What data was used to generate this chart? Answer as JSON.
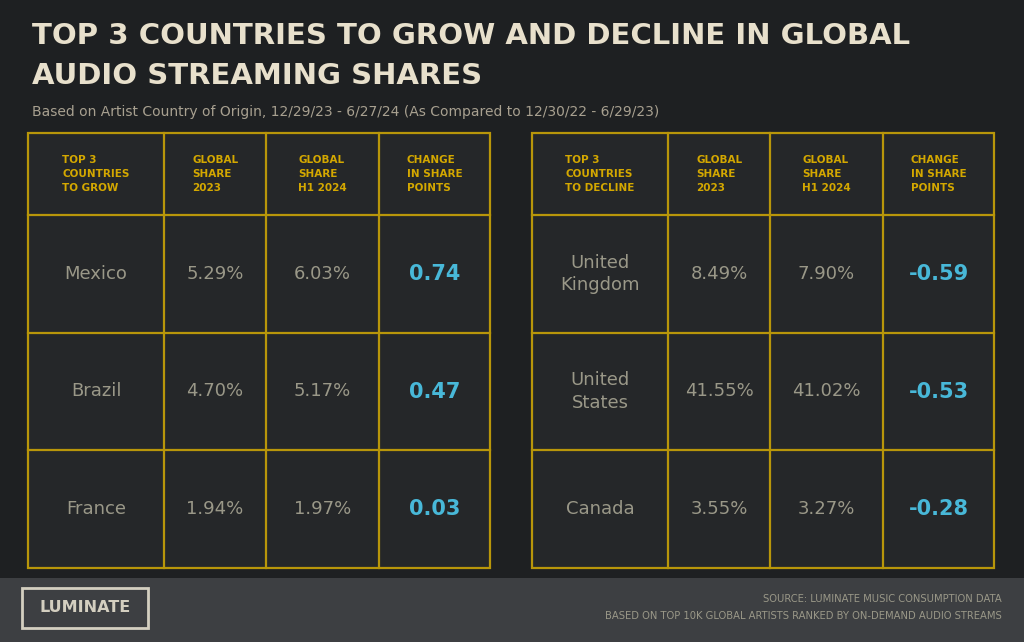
{
  "bg_color": "#1e2022",
  "table_bg_color": "#252729",
  "footer_color": "#3d3f42",
  "title_line1": "TOP 3 COUNTRIES TO GROW AND DECLINE IN GLOBAL",
  "title_line2": "AUDIO STREAMING SHARES",
  "subtitle": "Based on Artist Country of Origin, 12/29/23 - 6/27/24 (As Compared to 12/30/22 - 6/29/23)",
  "title_color": "#e8e0cc",
  "subtitle_color": "#a8a090",
  "table_border_color": "#b8960a",
  "header_text_color": "#d4a800",
  "body_text_color": "#9a9888",
  "change_color": "#48b8d8",
  "grow_table": {
    "headers": [
      "TOP 3\nCOUNTRIES\nTO GROW",
      "GLOBAL\nSHARE\n2023",
      "GLOBAL\nSHARE\nH1 2024",
      "CHANGE\nIN SHARE\nPOINTS"
    ],
    "rows": [
      [
        "Mexico",
        "5.29%",
        "6.03%",
        "0.74"
      ],
      [
        "Brazil",
        "4.70%",
        "5.17%",
        "0.47"
      ],
      [
        "France",
        "1.94%",
        "1.97%",
        "0.03"
      ]
    ]
  },
  "decline_table": {
    "headers": [
      "TOP 3\nCOUNTRIES\nTO DECLINE",
      "GLOBAL\nSHARE\n2023",
      "GLOBAL\nSHARE\nH1 2024",
      "CHANGE\nIN SHARE\nPOINTS"
    ],
    "rows": [
      [
        "United\nKingdom",
        "8.49%",
        "7.90%",
        "-0.59"
      ],
      [
        "United\nStates",
        "41.55%",
        "41.02%",
        "-0.53"
      ],
      [
        "Canada",
        "3.55%",
        "3.27%",
        "-0.28"
      ]
    ]
  },
  "logo_text": "LUMINATE",
  "logo_text_color": "#d4cfc0",
  "logo_border_color": "#d4cfc0",
  "source_line1": "SOURCE: LUMINATE MUSIC CONSUMPTION DATA",
  "source_line2": "BASED ON TOP 10K GLOBAL ARTISTS RANKED BY ON-DEMAND AUDIO STREAMS",
  "source_color": "#9a9888"
}
